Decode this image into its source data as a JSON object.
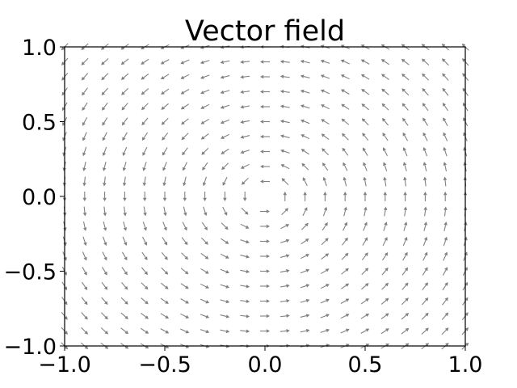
{
  "chart_data": {
    "type": "quiver",
    "title": "Vector field",
    "xlabel": "",
    "ylabel": "",
    "xlim": [
      -1.0,
      1.0
    ],
    "ylim": [
      -1.0,
      1.0
    ],
    "grid": false,
    "legend": "none",
    "x_ticks": [
      "−1.0",
      "−0.5",
      "0.0",
      "0.5",
      "1.0"
    ],
    "y_ticks": [
      "1.0",
      "0.5",
      "0.0",
      "−0.5",
      "−1.0"
    ],
    "x_tick_values": [
      -1.0,
      -0.5,
      0.0,
      0.5,
      1.0
    ],
    "y_tick_values": [
      1.0,
      0.5,
      0.0,
      -0.5,
      -1.0
    ],
    "grid_points_x": 21,
    "grid_points_y": 21,
    "field": {
      "u": "-y",
      "v": "x",
      "normalized": true,
      "direction": "counter-clockwise"
    },
    "arrow_color": "#808080"
  }
}
